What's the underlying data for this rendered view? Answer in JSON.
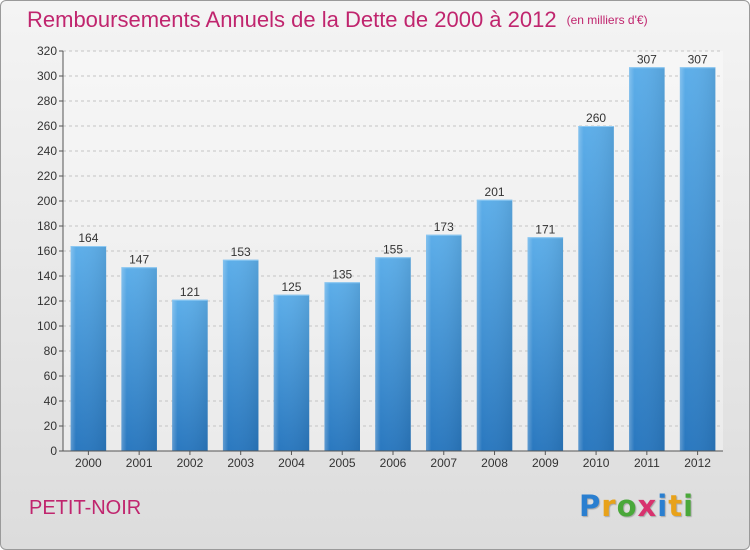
{
  "chart_data": {
    "type": "bar",
    "title": "Remboursements Annuels de la Dette de 2000 à 2012",
    "subtitle": "(en milliers d'€)",
    "categories": [
      "2000",
      "2001",
      "2002",
      "2003",
      "2004",
      "2005",
      "2006",
      "2007",
      "2008",
      "2009",
      "2010",
      "2011",
      "2012"
    ],
    "values": [
      164,
      147,
      121,
      153,
      125,
      135,
      155,
      173,
      201,
      171,
      260,
      307,
      307
    ],
    "ylim": [
      0,
      320
    ],
    "yticks": [
      0,
      20,
      40,
      60,
      80,
      100,
      120,
      140,
      160,
      180,
      200,
      220,
      240,
      260,
      280,
      300,
      320
    ],
    "grid": true,
    "bar_color": "#3a8fd6"
  },
  "place_name": "PETIT-NOIR",
  "logo": {
    "letters": [
      "P",
      "r",
      "o",
      "x",
      "i",
      "t",
      "i"
    ],
    "colors": [
      "#2a7fd0",
      "#e8a21a",
      "#4aa83a",
      "#d8326e",
      "#2a7fd0",
      "#e8a21a",
      "#4aa83a"
    ]
  }
}
